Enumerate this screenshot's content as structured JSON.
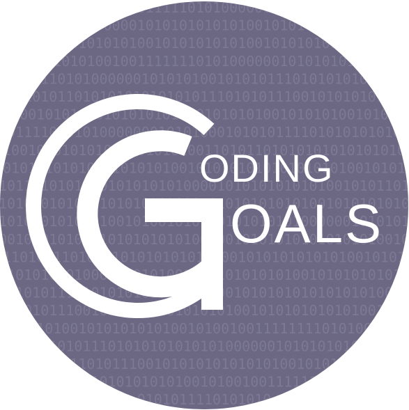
{
  "logo": {
    "word_line1": "ODING",
    "word_line2": "OALS",
    "background_color": "#6c6884",
    "foreground_color": "#ffffff",
    "binary_rows": [
      "10101011111010100000001010",
      "100000010101010101010010101010",
      "01010101001010101010100101010101",
      "101010010011111110101000000101010101",
      "01101010000001010101001010101110101010101",
      "010101101010101010101011101010111001010101010",
      "0001010101010101010101010101010010101010010101",
      "01111010101000000010101000101010111101010101010",
      "100101010101010101010100110101101010101010101010",
      "10101010101010101010100101010101010101010100101010",
      "1011010101010101010101000010101010101010010101101",
      "1010101010101010101010001010101010101001010101010",
      "1010101010101001010010101101010101010000001010101",
      "0010101010101010101010100000101010101010101010010",
      "11101011101010101010101010100101010101010100101010",
      "0101010101000101010100101010101010100101010101010",
      "01010111010101010101010100010101010101010101001",
      "01010111001010101010101010100101010101010100101",
      "10101001010101010100101001001111111101010000",
      "1010111010101010101010000001010101010",
      "001101011100101010101010101001010101",
      "01010101010100101001001111111",
      "0101011110101010"
    ]
  }
}
